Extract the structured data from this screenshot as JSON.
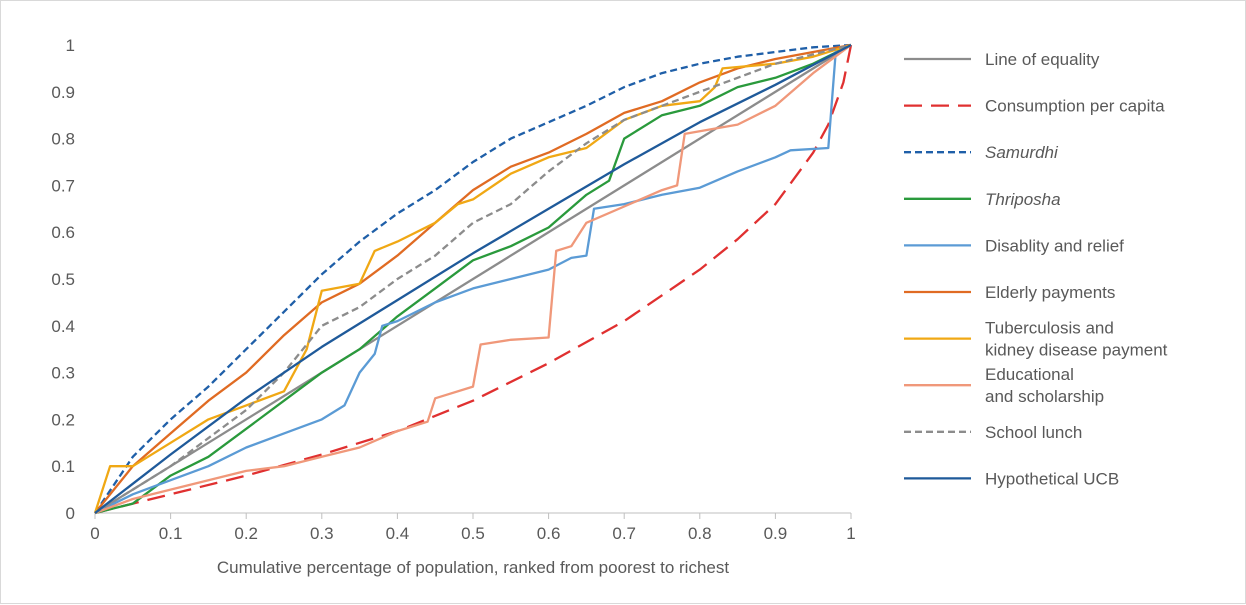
{
  "chart_data": {
    "type": "line",
    "title": "",
    "xlabel": "Cumulative percentage of population, ranked from poorest to richest",
    "ylabel": "",
    "xlim": [
      0,
      1
    ],
    "ylim": [
      0,
      1
    ],
    "x_ticks": [
      "0",
      "0.1",
      "0.2",
      "0.3",
      "0.4",
      "0.5",
      "0.6",
      "0.7",
      "0.8",
      "0.9",
      "1"
    ],
    "y_ticks": [
      "0",
      "0.1",
      "0.2",
      "0.3",
      "0.4",
      "0.5",
      "0.6",
      "0.7",
      "0.8",
      "0.9",
      "1"
    ],
    "grid": false,
    "legend_position": "right",
    "series": [
      {
        "name": "Line of equality",
        "legend_lines": [
          "Line of equality"
        ],
        "italic": false,
        "color": "#8c8c8c",
        "dash": "solid",
        "points": [
          [
            0,
            0
          ],
          [
            1,
            1
          ]
        ]
      },
      {
        "name": "Consumption per capita",
        "legend_lines": [
          "Consumption per capita"
        ],
        "italic": false,
        "color": "#e03030",
        "dash": "long-dash",
        "points": [
          [
            0,
            0
          ],
          [
            0.1,
            0.04
          ],
          [
            0.2,
            0.08
          ],
          [
            0.3,
            0.125
          ],
          [
            0.4,
            0.175
          ],
          [
            0.5,
            0.24
          ],
          [
            0.6,
            0.32
          ],
          [
            0.7,
            0.41
          ],
          [
            0.8,
            0.52
          ],
          [
            0.85,
            0.585
          ],
          [
            0.9,
            0.66
          ],
          [
            0.95,
            0.77
          ],
          [
            0.97,
            0.83
          ],
          [
            0.99,
            0.92
          ],
          [
            1,
            1
          ]
        ]
      },
      {
        "name": "Samurdhi",
        "legend_lines": [
          "Samurdhi"
        ],
        "italic": true,
        "color": "#1f5fa8",
        "dash": "short-dash",
        "points": [
          [
            0,
            0
          ],
          [
            0.05,
            0.12
          ],
          [
            0.1,
            0.2
          ],
          [
            0.15,
            0.27
          ],
          [
            0.2,
            0.35
          ],
          [
            0.25,
            0.43
          ],
          [
            0.3,
            0.51
          ],
          [
            0.35,
            0.58
          ],
          [
            0.4,
            0.64
          ],
          [
            0.45,
            0.69
          ],
          [
            0.5,
            0.75
          ],
          [
            0.55,
            0.8
          ],
          [
            0.6,
            0.835
          ],
          [
            0.65,
            0.87
          ],
          [
            0.7,
            0.91
          ],
          [
            0.75,
            0.94
          ],
          [
            0.8,
            0.96
          ],
          [
            0.85,
            0.975
          ],
          [
            0.9,
            0.985
          ],
          [
            0.95,
            0.995
          ],
          [
            1,
            1
          ]
        ]
      },
      {
        "name": "Thriposha",
        "legend_lines": [
          "Thriposha"
        ],
        "italic": true,
        "color": "#2a9a3c",
        "dash": "solid",
        "points": [
          [
            0,
            0
          ],
          [
            0.05,
            0.02
          ],
          [
            0.1,
            0.08
          ],
          [
            0.15,
            0.12
          ],
          [
            0.2,
            0.18
          ],
          [
            0.25,
            0.24
          ],
          [
            0.3,
            0.3
          ],
          [
            0.35,
            0.35
          ],
          [
            0.4,
            0.42
          ],
          [
            0.45,
            0.48
          ],
          [
            0.5,
            0.54
          ],
          [
            0.55,
            0.57
          ],
          [
            0.6,
            0.61
          ],
          [
            0.65,
            0.68
          ],
          [
            0.68,
            0.71
          ],
          [
            0.7,
            0.8
          ],
          [
            0.75,
            0.85
          ],
          [
            0.8,
            0.87
          ],
          [
            0.85,
            0.91
          ],
          [
            0.9,
            0.93
          ],
          [
            0.95,
            0.96
          ],
          [
            1,
            1
          ]
        ]
      },
      {
        "name": "Disablity and relief",
        "legend_lines": [
          "Disablity and relief"
        ],
        "italic": false,
        "color": "#5b9bd5",
        "dash": "solid",
        "points": [
          [
            0,
            0
          ],
          [
            0.05,
            0.04
          ],
          [
            0.1,
            0.07
          ],
          [
            0.15,
            0.1
          ],
          [
            0.2,
            0.14
          ],
          [
            0.25,
            0.17
          ],
          [
            0.3,
            0.2
          ],
          [
            0.33,
            0.23
          ],
          [
            0.35,
            0.3
          ],
          [
            0.37,
            0.34
          ],
          [
            0.38,
            0.4
          ],
          [
            0.4,
            0.41
          ],
          [
            0.45,
            0.45
          ],
          [
            0.5,
            0.48
          ],
          [
            0.55,
            0.5
          ],
          [
            0.6,
            0.52
          ],
          [
            0.63,
            0.545
          ],
          [
            0.65,
            0.55
          ],
          [
            0.66,
            0.65
          ],
          [
            0.7,
            0.66
          ],
          [
            0.75,
            0.68
          ],
          [
            0.8,
            0.695
          ],
          [
            0.85,
            0.73
          ],
          [
            0.9,
            0.76
          ],
          [
            0.92,
            0.775
          ],
          [
            0.97,
            0.78
          ],
          [
            0.98,
            0.99
          ],
          [
            1,
            1
          ]
        ]
      },
      {
        "name": "Elderly payments",
        "legend_lines": [
          "Elderly payments"
        ],
        "italic": false,
        "color": "#e06b23",
        "dash": "solid",
        "points": [
          [
            0,
            0
          ],
          [
            0.05,
            0.1
          ],
          [
            0.1,
            0.17
          ],
          [
            0.15,
            0.24
          ],
          [
            0.2,
            0.3
          ],
          [
            0.25,
            0.38
          ],
          [
            0.3,
            0.45
          ],
          [
            0.35,
            0.49
          ],
          [
            0.4,
            0.55
          ],
          [
            0.45,
            0.62
          ],
          [
            0.5,
            0.69
          ],
          [
            0.55,
            0.74
          ],
          [
            0.6,
            0.77
          ],
          [
            0.65,
            0.81
          ],
          [
            0.7,
            0.855
          ],
          [
            0.75,
            0.88
          ],
          [
            0.8,
            0.92
          ],
          [
            0.85,
            0.95
          ],
          [
            0.9,
            0.97
          ],
          [
            0.95,
            0.985
          ],
          [
            1,
            1
          ]
        ]
      },
      {
        "name": "Tuberculosis and kidney disease payment",
        "legend_lines": [
          "Tuberculosis and",
          "kidney disease payment"
        ],
        "italic": false,
        "color": "#f0a814",
        "dash": "solid",
        "points": [
          [
            0,
            0
          ],
          [
            0.02,
            0.1
          ],
          [
            0.05,
            0.1
          ],
          [
            0.1,
            0.15
          ],
          [
            0.15,
            0.2
          ],
          [
            0.2,
            0.23
          ],
          [
            0.25,
            0.26
          ],
          [
            0.28,
            0.35
          ],
          [
            0.3,
            0.475
          ],
          [
            0.35,
            0.49
          ],
          [
            0.37,
            0.56
          ],
          [
            0.4,
            0.58
          ],
          [
            0.45,
            0.62
          ],
          [
            0.48,
            0.66
          ],
          [
            0.5,
            0.67
          ],
          [
            0.55,
            0.725
          ],
          [
            0.6,
            0.76
          ],
          [
            0.65,
            0.78
          ],
          [
            0.7,
            0.84
          ],
          [
            0.75,
            0.87
          ],
          [
            0.8,
            0.88
          ],
          [
            0.82,
            0.91
          ],
          [
            0.83,
            0.95
          ],
          [
            0.9,
            0.96
          ],
          [
            0.95,
            0.975
          ],
          [
            1,
            1
          ]
        ]
      },
      {
        "name": "Educational and scholarship",
        "legend_lines": [
          "Educational",
          "and scholarship"
        ],
        "italic": false,
        "color": "#f0987a",
        "dash": "solid",
        "points": [
          [
            0,
            0
          ],
          [
            0.05,
            0.03
          ],
          [
            0.1,
            0.05
          ],
          [
            0.15,
            0.07
          ],
          [
            0.2,
            0.09
          ],
          [
            0.25,
            0.1
          ],
          [
            0.3,
            0.12
          ],
          [
            0.35,
            0.14
          ],
          [
            0.4,
            0.175
          ],
          [
            0.44,
            0.195
          ],
          [
            0.45,
            0.245
          ],
          [
            0.5,
            0.27
          ],
          [
            0.51,
            0.36
          ],
          [
            0.55,
            0.37
          ],
          [
            0.6,
            0.375
          ],
          [
            0.61,
            0.56
          ],
          [
            0.63,
            0.57
          ],
          [
            0.65,
            0.62
          ],
          [
            0.7,
            0.655
          ],
          [
            0.75,
            0.69
          ],
          [
            0.77,
            0.7
          ],
          [
            0.78,
            0.81
          ],
          [
            0.85,
            0.83
          ],
          [
            0.9,
            0.87
          ],
          [
            0.95,
            0.94
          ],
          [
            1,
            1
          ]
        ]
      },
      {
        "name": "School lunch",
        "legend_lines": [
          "School lunch"
        ],
        "italic": false,
        "color": "#8c8c8c",
        "dash": "short-dash",
        "points": [
          [
            0,
            0
          ],
          [
            0.05,
            0.05
          ],
          [
            0.1,
            0.1
          ],
          [
            0.15,
            0.16
          ],
          [
            0.2,
            0.22
          ],
          [
            0.25,
            0.3
          ],
          [
            0.3,
            0.4
          ],
          [
            0.35,
            0.44
          ],
          [
            0.4,
            0.5
          ],
          [
            0.45,
            0.55
          ],
          [
            0.5,
            0.62
          ],
          [
            0.55,
            0.66
          ],
          [
            0.6,
            0.73
          ],
          [
            0.65,
            0.79
          ],
          [
            0.7,
            0.84
          ],
          [
            0.75,
            0.87
          ],
          [
            0.8,
            0.9
          ],
          [
            0.85,
            0.93
          ],
          [
            0.9,
            0.96
          ],
          [
            0.95,
            0.98
          ],
          [
            1,
            1
          ]
        ]
      },
      {
        "name": "Hypothetical UCB",
        "legend_lines": [
          "Hypothetical UCB"
        ],
        "italic": false,
        "color": "#1f5a9a",
        "dash": "solid",
        "points": [
          [
            0,
            0
          ],
          [
            0.1,
            0.125
          ],
          [
            0.2,
            0.245
          ],
          [
            0.3,
            0.355
          ],
          [
            0.4,
            0.455
          ],
          [
            0.5,
            0.555
          ],
          [
            0.6,
            0.65
          ],
          [
            0.7,
            0.745
          ],
          [
            0.8,
            0.835
          ],
          [
            0.9,
            0.915
          ],
          [
            1,
            1
          ]
        ]
      }
    ]
  }
}
